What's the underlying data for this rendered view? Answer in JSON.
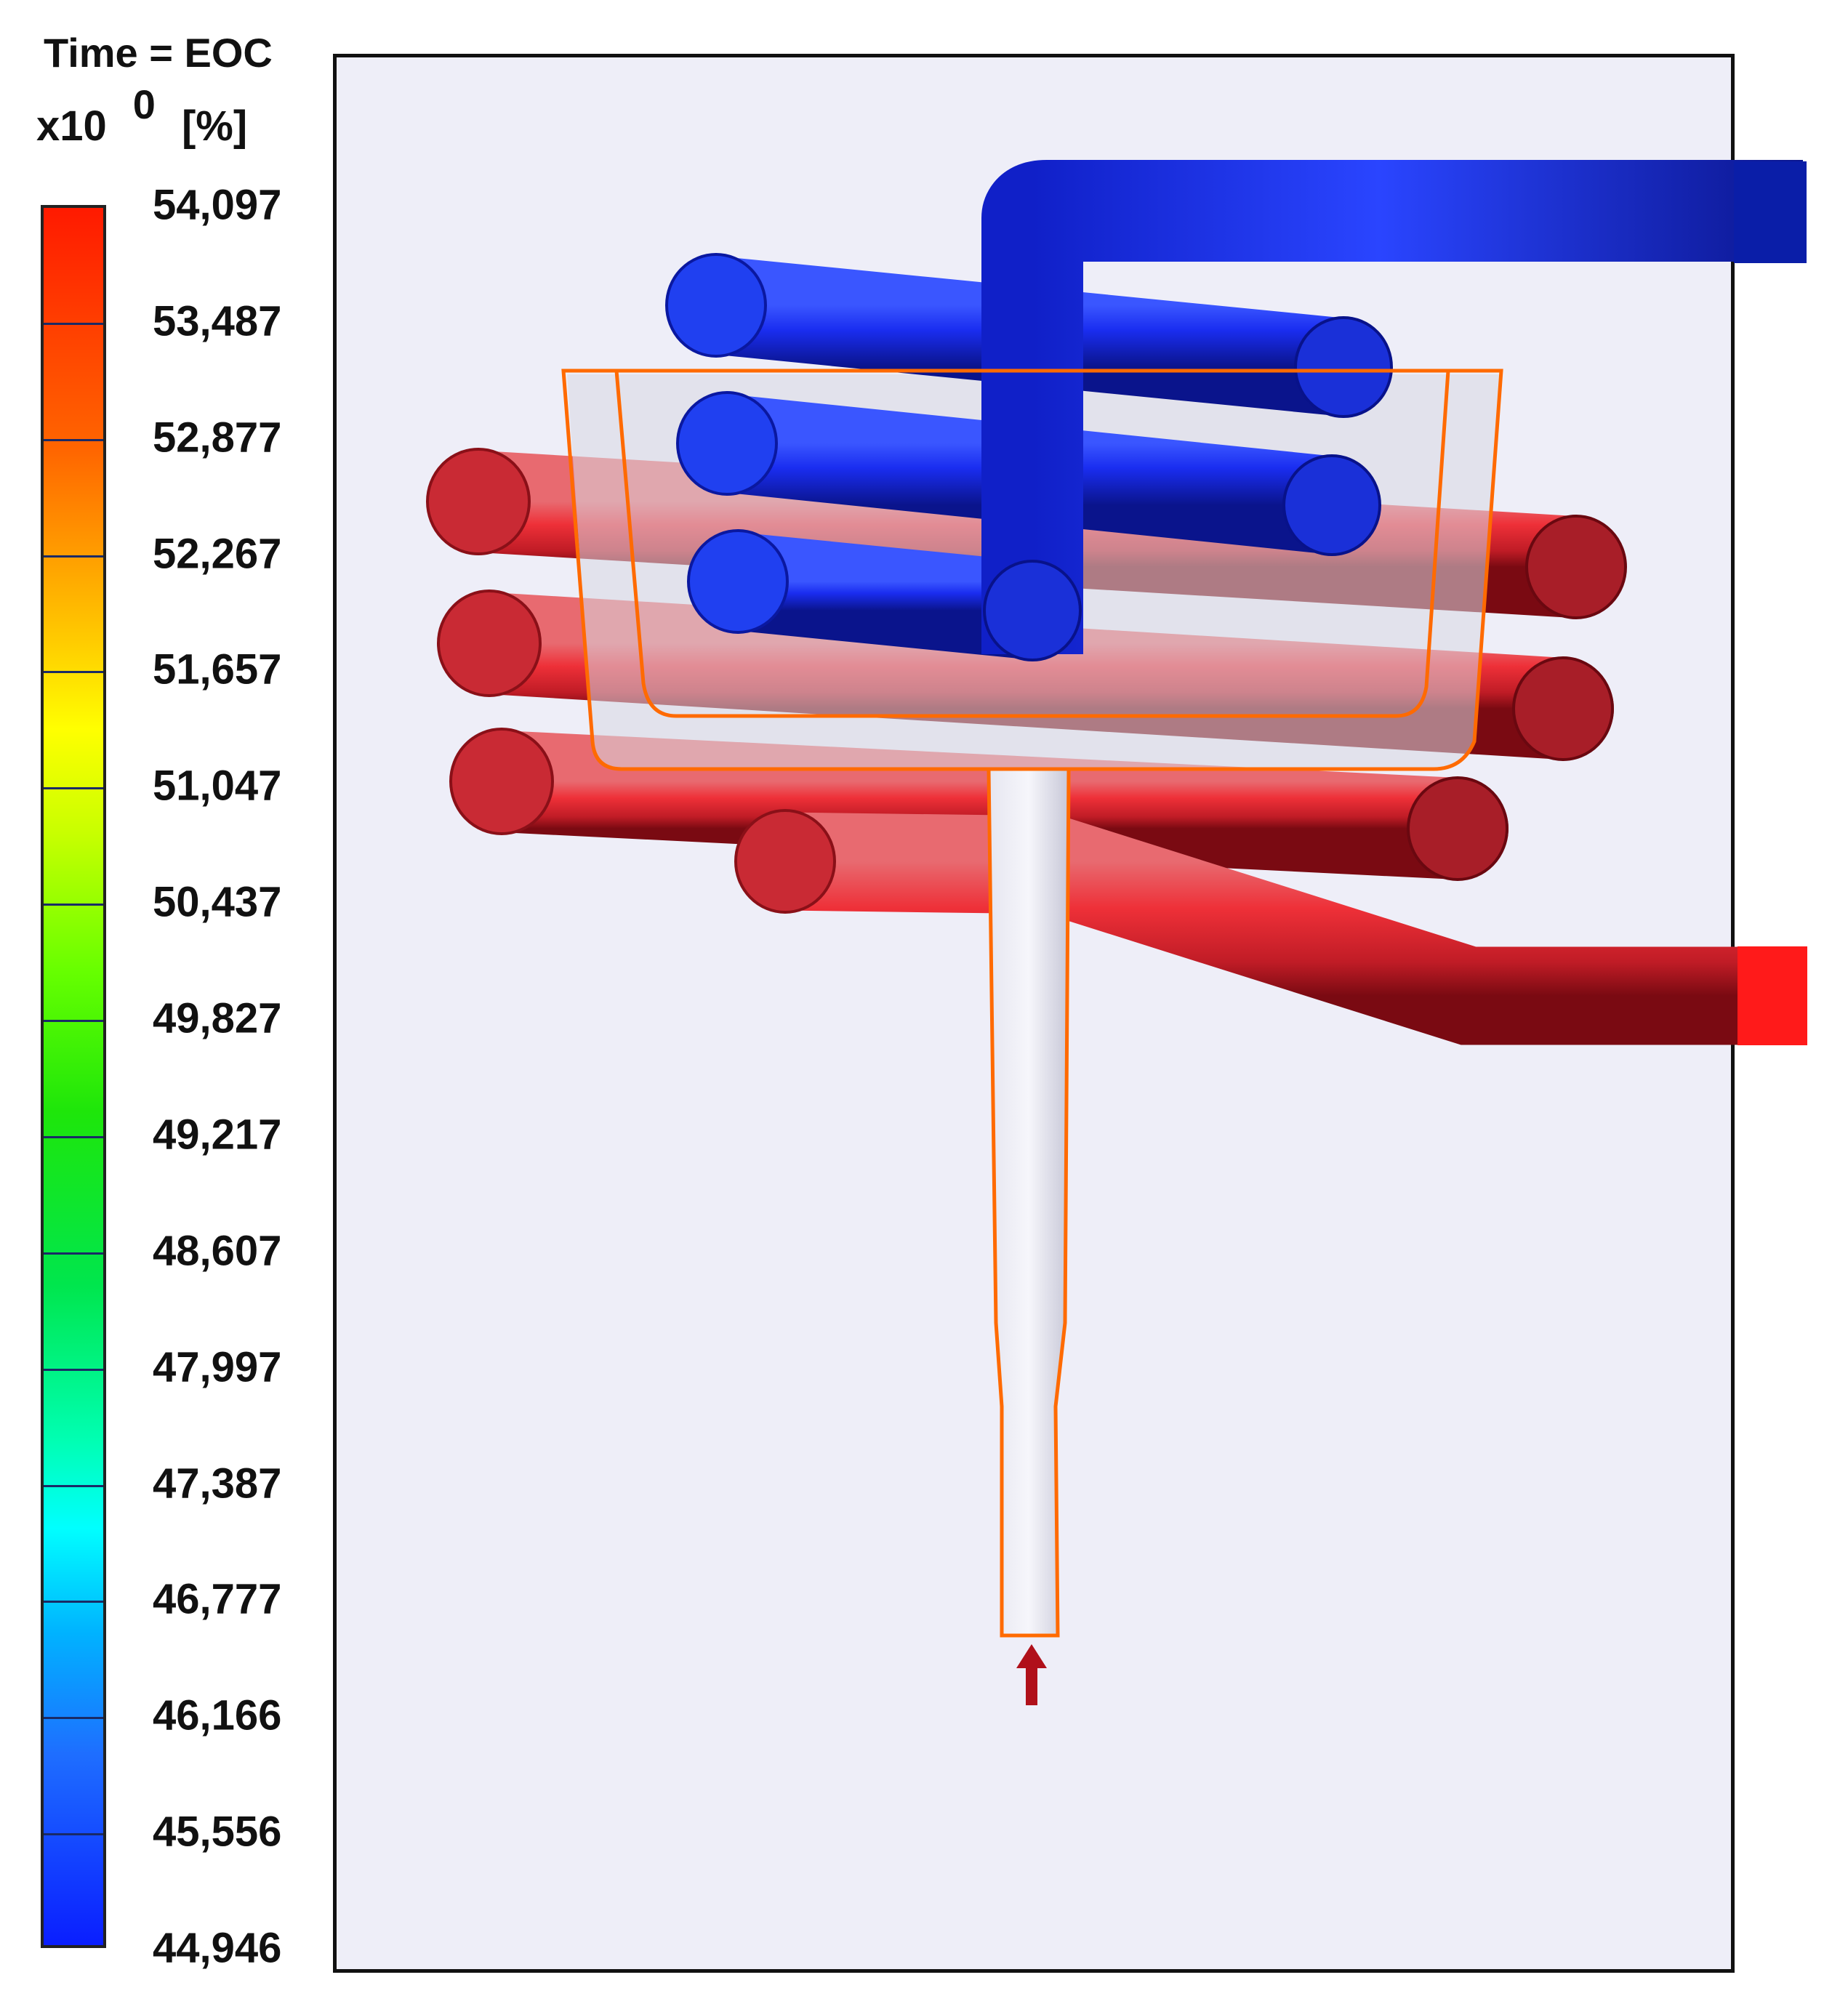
{
  "legend": {
    "title": "Time = EOC",
    "multiplier": "x10",
    "exponent": "0",
    "unit": "[%]",
    "ticks": [
      "54,097",
      "53,487",
      "52,877",
      "52,267",
      "51,657",
      "51,047",
      "50,437",
      "49,827",
      "49,217",
      "48,607",
      "47,997",
      "47,387",
      "46,777",
      "46,166",
      "45,556",
      "44,946"
    ],
    "colors": {
      "max": "#ff1a00",
      "mid": "#1ee60a",
      "min": "#0a1eff"
    }
  },
  "scene": {
    "pipes": [
      {
        "name": "cold-coil",
        "color": "#1428e0"
      },
      {
        "name": "hot-coil",
        "color": "#e0202a"
      }
    ],
    "outline_color": "#ff6a00",
    "marker": "inlet-arrow"
  }
}
